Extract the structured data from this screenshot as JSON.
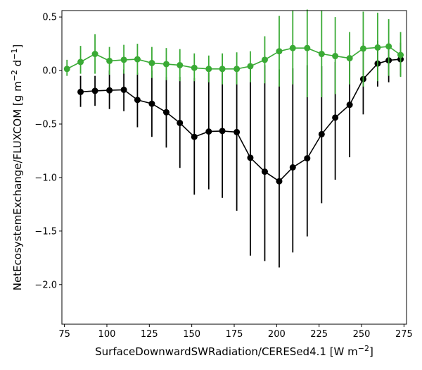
{
  "chart_data": {
    "type": "line",
    "xlabel": "SurfaceDownwardSWRadiation/CERESed4.1 [W m$^{-2}$]",
    "ylabel": "NetEcosystemExchange/FLUXCOM [g m$^{-2}$ d$^{-1}$]",
    "xlabel_parts": {
      "base": "SurfaceDownwardSWRadiation/CERESed4.1 [W m",
      "exp": "−2",
      "tail": "]"
    },
    "ylabel_parts": {
      "base": "NetEcosystemExchange/FLUXCOM [g m",
      "exp1": "−2",
      "mid": " d",
      "exp2": "−1",
      "tail": "]"
    },
    "xlim": [
      73.5,
      276.5
    ],
    "ylim": [
      -2.37,
      0.56
    ],
    "xticks": [
      75,
      100,
      125,
      150,
      175,
      200,
      225,
      250,
      275
    ],
    "yticks": [
      0.5,
      0.0,
      -0.5,
      -1.0,
      -1.5,
      -2.0
    ],
    "ytick_labels": [
      "0.5",
      "0.0",
      "−0.5",
      "−1.0",
      "−1.5",
      "−2.0"
    ],
    "grid": false,
    "legend": "none",
    "series": [
      {
        "color": "#000000",
        "x": [
          84.5,
          93,
          101.5,
          110,
          118,
          126.5,
          135,
          143,
          151.5,
          160,
          168,
          176.5,
          184.5,
          193,
          201.5,
          209.5,
          218,
          226.5,
          234.5,
          243,
          251,
          259.5,
          266,
          273
        ],
        "y": [
          -0.2,
          -0.19,
          -0.185,
          -0.18,
          -0.275,
          -0.31,
          -0.39,
          -0.49,
          -0.62,
          -0.57,
          -0.565,
          -0.575,
          -0.815,
          -0.945,
          -1.035,
          -0.905,
          -0.82,
          -0.595,
          -0.44,
          -0.32,
          -0.08,
          0.065,
          0.095,
          0.105
        ],
        "err_low": [
          -0.34,
          -0.33,
          -0.36,
          -0.38,
          -0.53,
          -0.62,
          -0.72,
          -0.91,
          -1.16,
          -1.11,
          -1.19,
          -1.31,
          -1.73,
          -1.78,
          -1.84,
          -1.7,
          -1.55,
          -1.24,
          -1.02,
          -0.81,
          -0.41,
          -0.15,
          -0.11,
          -0.05
        ],
        "err_high": [
          -0.05,
          -0.05,
          0.0,
          0.01,
          -0.02,
          0.0,
          -0.06,
          -0.06,
          -0.07,
          -0.02,
          0.01,
          0.02,
          0.05,
          0.05,
          0.01,
          0.02,
          0.05,
          0.04,
          0.08,
          0.13,
          0.26,
          0.28,
          0.26,
          0.26
        ]
      },
      {
        "color": "#3aaa35",
        "x": [
          76.5,
          84.5,
          93,
          101.5,
          110,
          118,
          126.5,
          135,
          143,
          151.5,
          160,
          168,
          176.5,
          184.5,
          193,
          201.5,
          209.5,
          218,
          226.5,
          234.5,
          243,
          251,
          259.5,
          266,
          273
        ],
        "y": [
          0.015,
          0.08,
          0.155,
          0.09,
          0.1,
          0.105,
          0.07,
          0.06,
          0.05,
          0.025,
          0.015,
          0.015,
          0.015,
          0.04,
          0.1,
          0.18,
          0.21,
          0.21,
          0.155,
          0.135,
          0.115,
          0.205,
          0.215,
          0.225,
          0.145
        ],
        "err_low": [
          -0.05,
          -0.03,
          -0.03,
          -0.04,
          -0.03,
          -0.04,
          -0.07,
          -0.09,
          -0.1,
          -0.1,
          -0.11,
          -0.13,
          -0.13,
          -0.11,
          -0.12,
          -0.15,
          -0.13,
          -0.25,
          -0.25,
          -0.22,
          -0.13,
          -0.15,
          -0.1,
          -0.05,
          -0.06
        ],
        "err_high": [
          0.1,
          0.23,
          0.34,
          0.22,
          0.24,
          0.25,
          0.22,
          0.21,
          0.2,
          0.16,
          0.14,
          0.16,
          0.17,
          0.18,
          0.32,
          0.51,
          0.56,
          0.57,
          0.56,
          0.5,
          0.36,
          0.55,
          0.54,
          0.48,
          0.36
        ]
      }
    ]
  }
}
